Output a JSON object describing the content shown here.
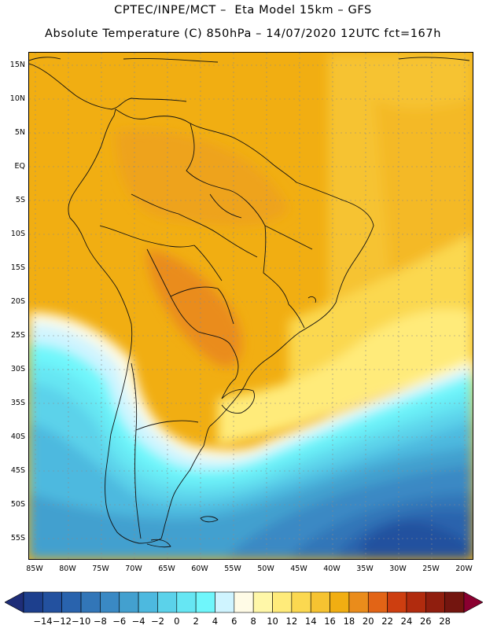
{
  "header": {
    "line1": "CPTEC/INPE/MCT –  Eta Model 15km – GFS",
    "line2": "Absolute Temperature (C) 850hPa – 14/07/2020 12UTC fct=167h"
  },
  "axes": {
    "lat_labels": [
      "15N",
      "10N",
      "5N",
      "EQ",
      "5S",
      "10S",
      "15S",
      "20S",
      "25S",
      "30S",
      "35S",
      "40S",
      "45S",
      "50S",
      "55S"
    ],
    "lon_labels": [
      "85W",
      "80W",
      "75W",
      "70W",
      "65W",
      "60W",
      "55W",
      "50W",
      "45W",
      "40W",
      "35W",
      "30W",
      "25W",
      "20W"
    ],
    "lat_range": [
      -59,
      16.5
    ],
    "lon_range": [
      -86.5,
      -19.5
    ]
  },
  "colorbar": {
    "labels": [
      "-14",
      "-12",
      "-10",
      "-8",
      "-6",
      "-4",
      "-2",
      "0",
      "2",
      "4",
      "6",
      "8",
      "10",
      "12",
      "14",
      "16",
      "18",
      "20",
      "22",
      "24",
      "26",
      "28"
    ],
    "colors": [
      "#1d3f8d",
      "#23519f",
      "#2963ad",
      "#3276b8",
      "#3a89c4",
      "#43a0cf",
      "#4db9df",
      "#5bd2ea",
      "#66e6f3",
      "#6ff6fb",
      "#cff4ff",
      "#fffbe6",
      "#fff7a8",
      "#ffeb7a",
      "#fbd850",
      "#f6c331",
      "#f1ae12",
      "#ea8c1b",
      "#e26416",
      "#cd3e10",
      "#b12b0e",
      "#901e0e",
      "#73150f"
    ],
    "low_arrow_color": "#1e2d78",
    "high_arrow_color": "#8a0030"
  }
}
